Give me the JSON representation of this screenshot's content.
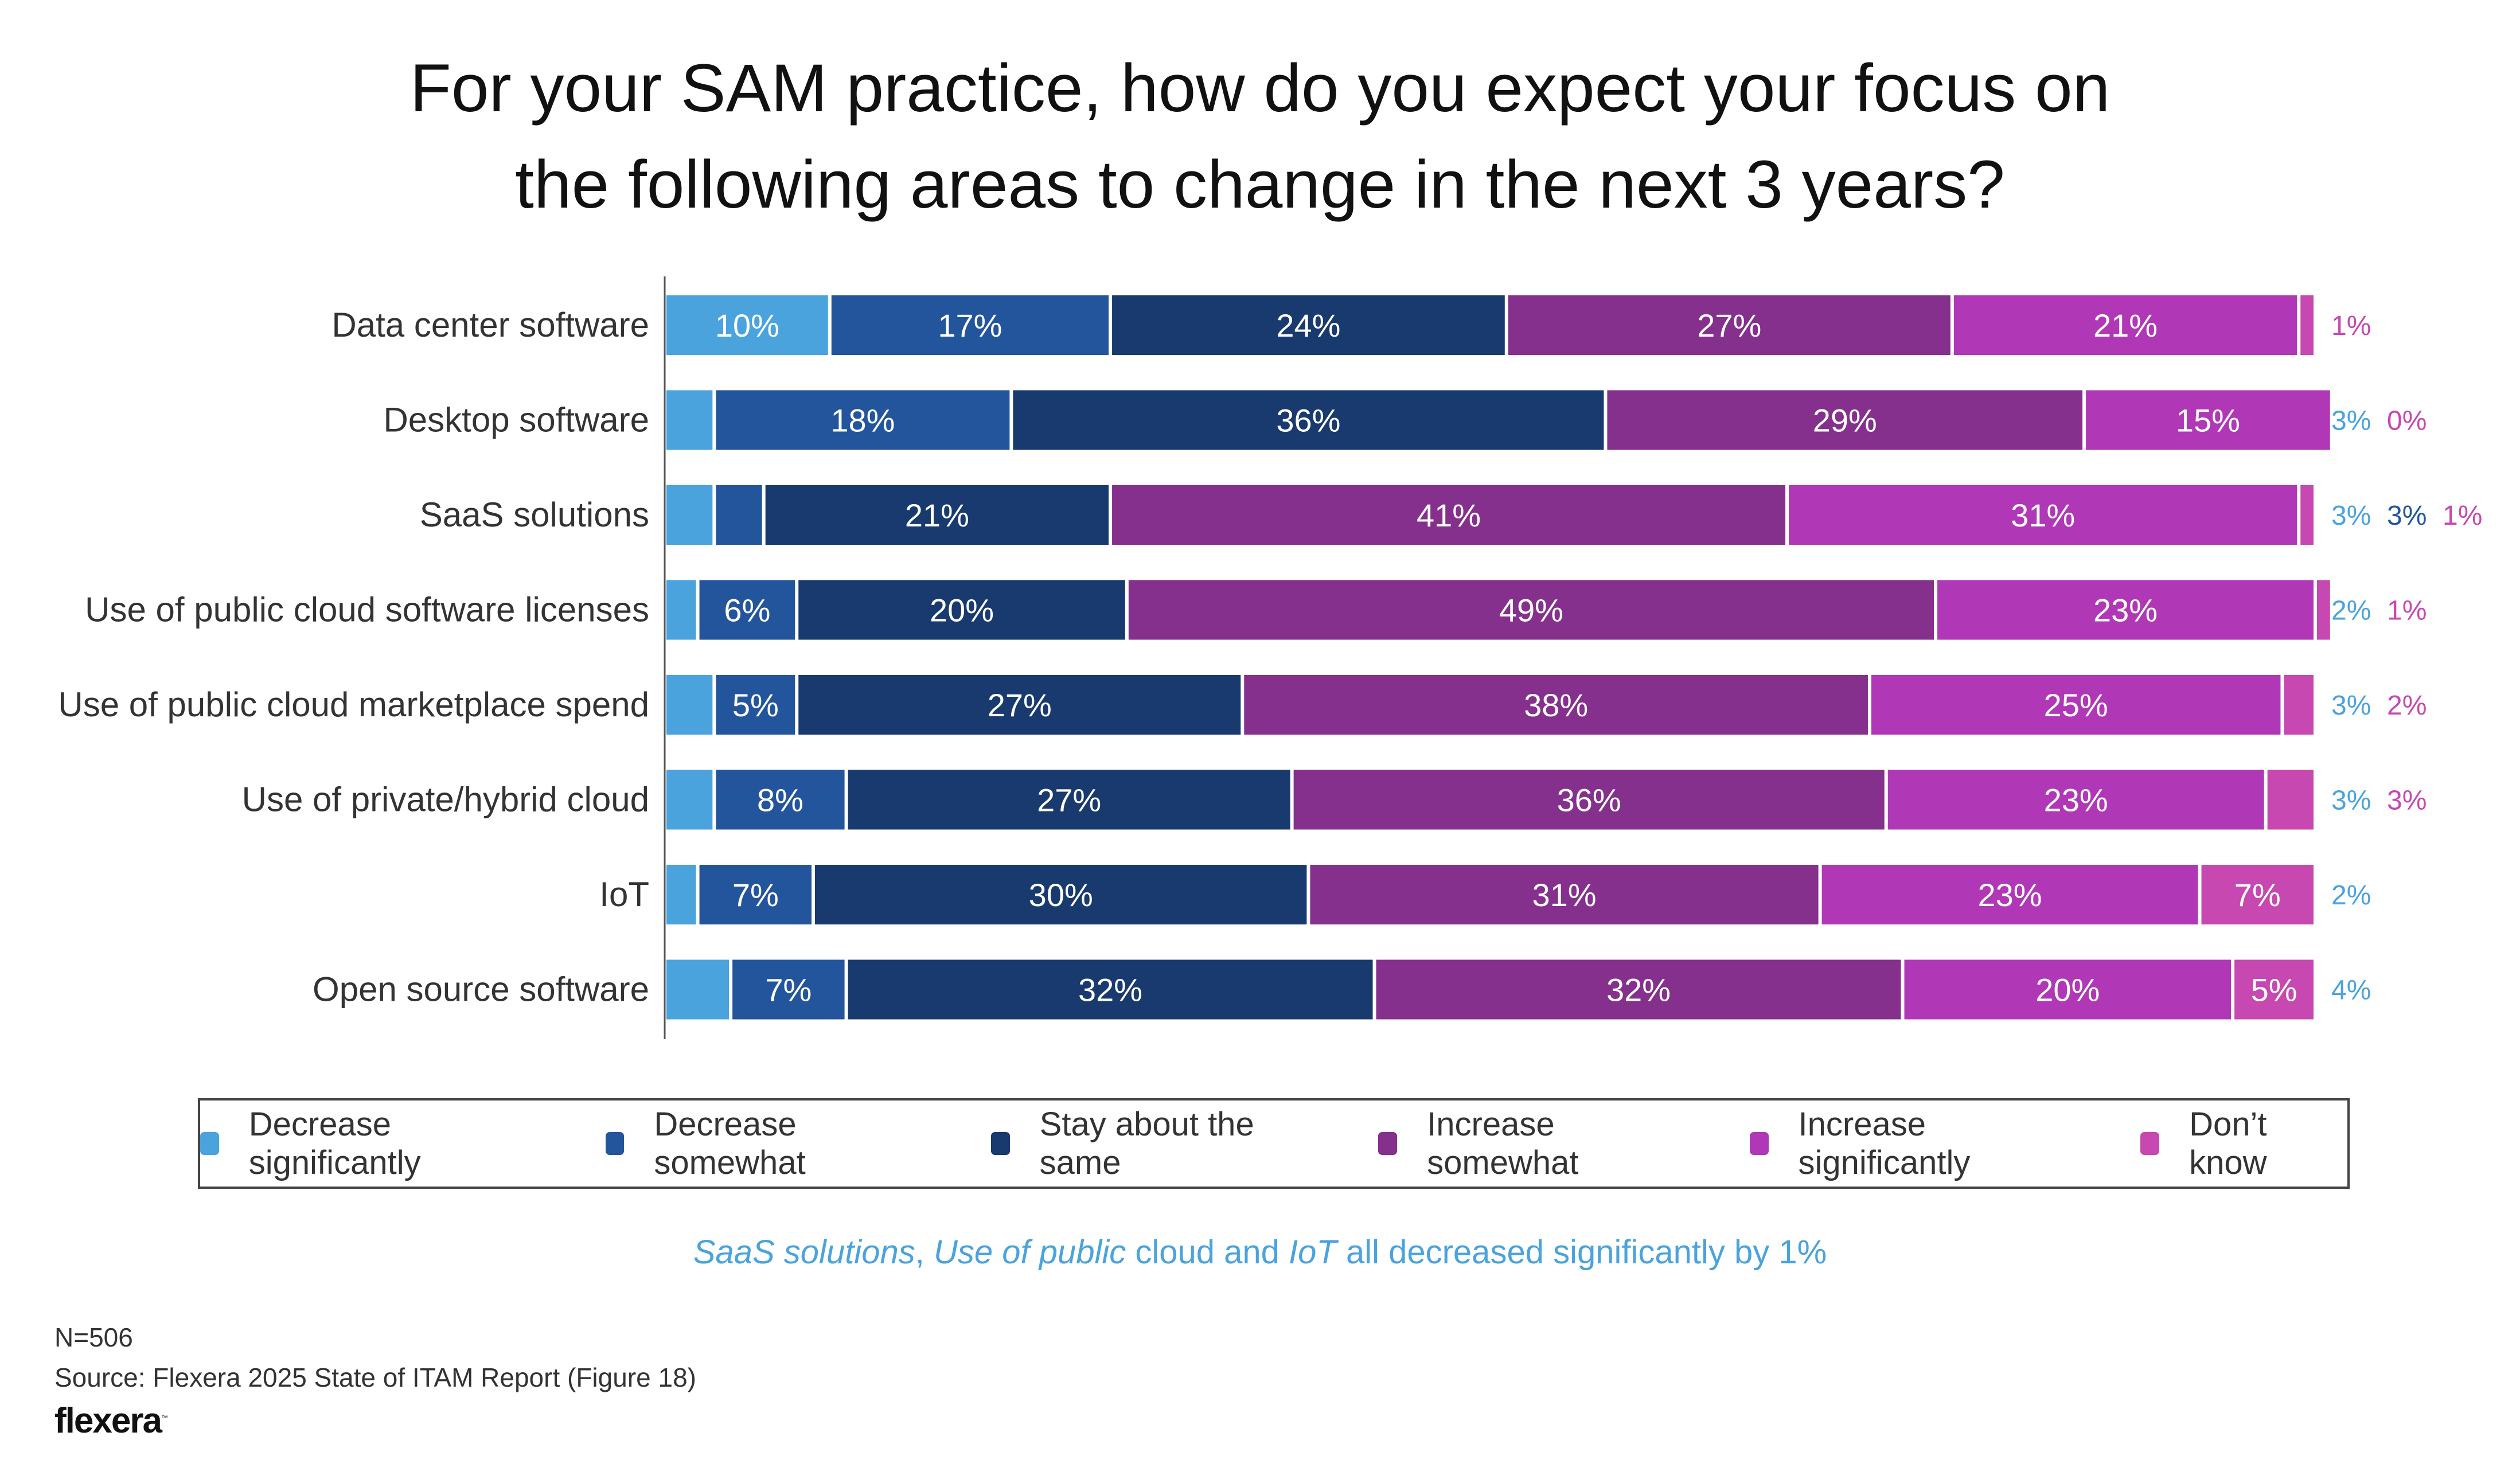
{
  "title_line1": "For your SAM practice, how do you expect your focus on",
  "title_line2": "the following areas to change in the next 3 years?",
  "note": {
    "part1": "SaaS solutions",
    "part2": ", ",
    "part3": "Use of public",
    "part4": " cloud and ",
    "part5": "IoT",
    "part6": " all decreased significantly by 1%"
  },
  "footer": {
    "n": "N=506",
    "source": "Source: Flexera 2025 State of ITAM Report (Figure 18)",
    "logo": "flexera"
  },
  "chart_data": {
    "type": "bar",
    "orientation": "horizontal-stacked-100",
    "title": "For your SAM practice, how do you expect your focus on the following areas to change in the next 3 years?",
    "xlabel": "",
    "ylabel": "",
    "xlim": [
      0,
      100
    ],
    "grid": false,
    "legend_position": "bottom",
    "categories": [
      "Data center software",
      "Desktop software",
      "SaaS solutions",
      "Use of public cloud software licenses",
      "Use of public cloud marketplace spend",
      "Use of private/hybrid cloud",
      "IoT",
      "Open source software"
    ],
    "series": [
      {
        "name": "Decrease significantly",
        "color": "#4aa3dc",
        "values": [
          10,
          3,
          3,
          2,
          3,
          3,
          2,
          4
        ]
      },
      {
        "name": "Decrease somewhat",
        "color": "#23559c",
        "values": [
          17,
          18,
          3,
          6,
          5,
          8,
          7,
          7
        ]
      },
      {
        "name": "Stay about the same",
        "color": "#183a6e",
        "values": [
          24,
          36,
          21,
          20,
          27,
          27,
          30,
          32
        ]
      },
      {
        "name": "Increase somewhat",
        "color": "#84308c",
        "values": [
          27,
          29,
          41,
          49,
          38,
          36,
          31,
          32
        ]
      },
      {
        "name": "Increase significantly",
        "color": "#b038b6",
        "values": [
          21,
          15,
          31,
          23,
          25,
          23,
          23,
          20
        ]
      },
      {
        "name": "Don’t know",
        "color": "#c648b0",
        "values": [
          1,
          0,
          1,
          1,
          2,
          3,
          7,
          5
        ]
      }
    ],
    "inside_labels": [
      [
        "10%",
        "17%",
        "24%",
        "27%",
        "21%",
        ""
      ],
      [
        "",
        "18%",
        "36%",
        "29%",
        "15%",
        ""
      ],
      [
        "",
        "",
        "21%",
        "41%",
        "31%",
        ""
      ],
      [
        "",
        "6%",
        "20%",
        "49%",
        "23%",
        ""
      ],
      [
        "",
        "5%",
        "27%",
        "38%",
        "25%",
        ""
      ],
      [
        "",
        "8%",
        "27%",
        "36%",
        "23%",
        ""
      ],
      [
        "",
        "7%",
        "30%",
        "31%",
        "23%",
        "7%"
      ],
      [
        "",
        "7%",
        "32%",
        "32%",
        "20%",
        "5%"
      ]
    ],
    "outside_labels": [
      [
        {
          "text": "1%",
          "series": 5
        }
      ],
      [
        {
          "text": "3%",
          "series": 0
        },
        {
          "text": "0%",
          "series": 5
        }
      ],
      [
        {
          "text": "3%",
          "series": 0
        },
        {
          "text": "3%",
          "series": 1
        },
        {
          "text": "1%",
          "series": 5
        }
      ],
      [
        {
          "text": "2%",
          "series": 0
        },
        {
          "text": "1%",
          "series": 5
        }
      ],
      [
        {
          "text": "3%",
          "series": 0
        },
        {
          "text": "2%",
          "series": 5
        }
      ],
      [
        {
          "text": "3%",
          "series": 0
        },
        {
          "text": "3%",
          "series": 5
        }
      ],
      [
        {
          "text": "2%",
          "series": 0
        }
      ],
      [
        {
          "text": "4%",
          "series": 0
        }
      ]
    ]
  }
}
